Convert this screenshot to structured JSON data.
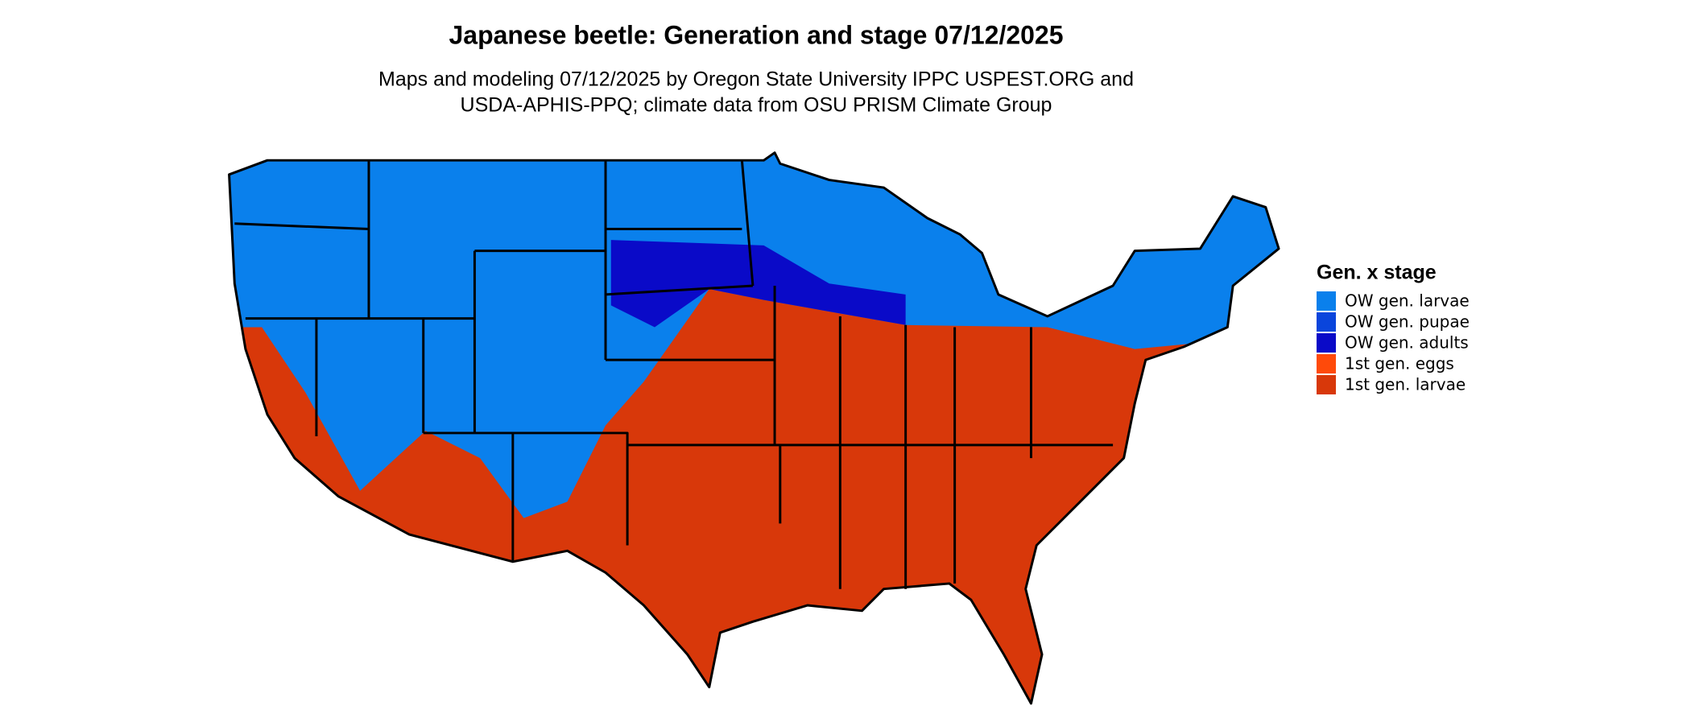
{
  "title": "Japanese beetle: Generation and stage 07/12/2025",
  "subtitle": [
    "Maps and modeling 07/12/2025 by Oregon State University IPPC USPEST.ORG and",
    "USDA-APHIS-PPQ; climate data from OSU PRISM Climate Group"
  ],
  "legend": {
    "title": "Gen. x stage",
    "items": [
      {
        "label": "OW gen. larvae",
        "color": "#0a80ec"
      },
      {
        "label": "OW gen. pupae",
        "color": "#0a45dc"
      },
      {
        "label": "OW gen. adults",
        "color": "#0a0ac8"
      },
      {
        "label": "1st gen. eggs",
        "color": "#ff4a0a"
      },
      {
        "label": "1st gen. larvae",
        "color": "#d8380a"
      }
    ]
  }
}
